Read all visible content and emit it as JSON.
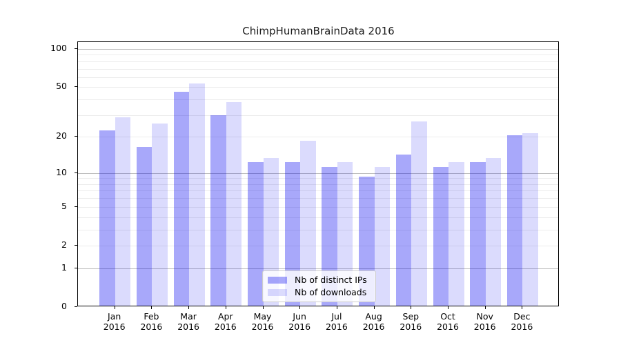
{
  "chart_data": {
    "type": "bar",
    "title": "ChimpHumanBrainData 2016",
    "categories": [
      "Jan",
      "Feb",
      "Mar",
      "Apr",
      "May",
      "Jun",
      "Jul",
      "Aug",
      "Sep",
      "Oct",
      "Nov",
      "Dec"
    ],
    "category_year": "2016",
    "series": [
      {
        "name": "Nb of distinct IPs",
        "color": "rgba(0,0,240,0.34)",
        "values": [
          22,
          16,
          45,
          29,
          12,
          12,
          11,
          9,
          14,
          11,
          12,
          20
        ]
      },
      {
        "name": "Nb of downloads",
        "color": "rgba(0,0,240,0.14)",
        "values": [
          28,
          25,
          52,
          37,
          13,
          18,
          12,
          11,
          26,
          12,
          13,
          21
        ]
      }
    ],
    "yscale": "log1p",
    "ylim": [
      0,
      113
    ],
    "yticks": [
      {
        "value": 100,
        "label": "100"
      },
      {
        "value": 50,
        "label": "50"
      },
      {
        "value": 20,
        "label": "20"
      },
      {
        "value": 10,
        "label": "10"
      },
      {
        "value": 5,
        "label": "5"
      },
      {
        "value": 2,
        "label": "2"
      },
      {
        "value": 1,
        "label": "1"
      },
      {
        "value": 0,
        "label": "0"
      }
    ],
    "major_grid_values": [
      1,
      10,
      100
    ],
    "minor_grid_values": [
      2,
      3,
      4,
      5,
      6,
      7,
      8,
      9,
      20,
      30,
      40,
      50,
      60,
      70,
      80,
      90
    ],
    "grid": true,
    "legend_position": "lower center",
    "xlabel": "",
    "ylabel": ""
  },
  "colors": {
    "major_grid": "#bdbdbd",
    "minor_grid": "#ececec",
    "spine": "#000000"
  }
}
